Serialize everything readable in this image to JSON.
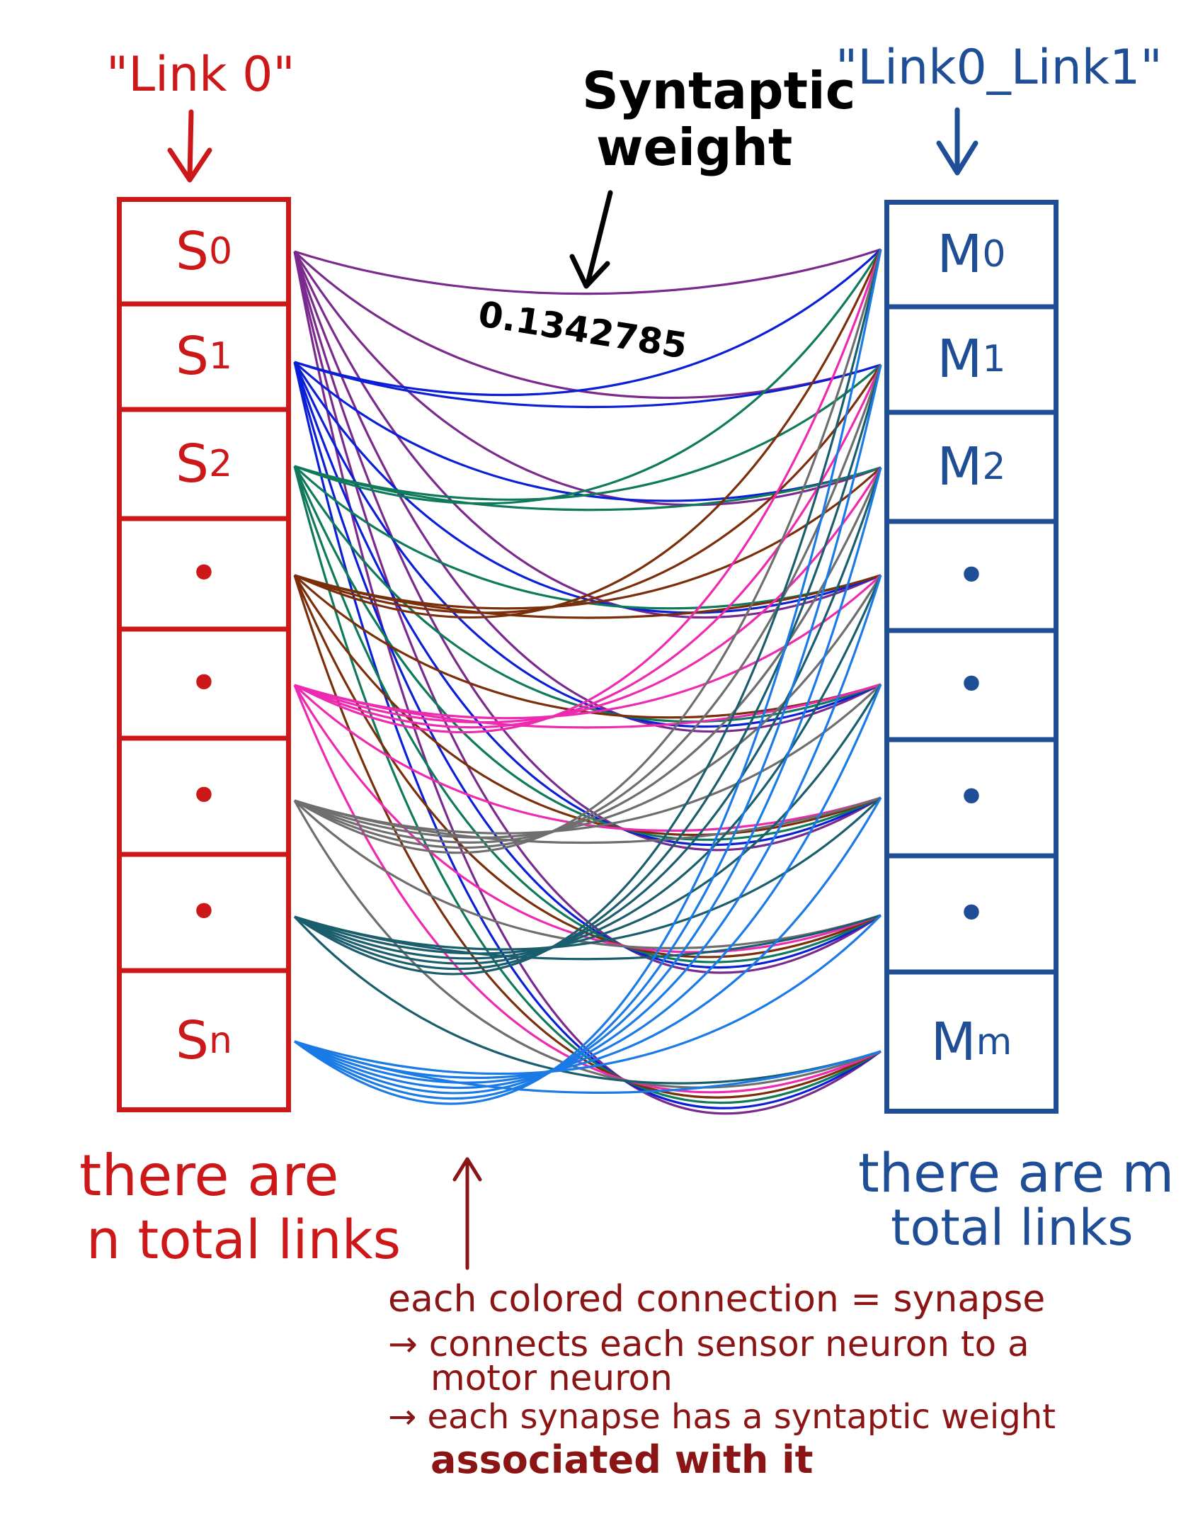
{
  "left_label": "\"Link 0\"",
  "right_label": "\"Link0_Link1\"",
  "weight_label_line1": "Syntaptic",
  "weight_label_line2": "weight",
  "weight_value": "0.1342785",
  "left_column": {
    "color": "#cc1818",
    "cells": [
      {
        "base": "S",
        "sub": "0"
      },
      {
        "base": "S",
        "sub": "1"
      },
      {
        "base": "S",
        "sub": "2"
      },
      {
        "base": "•",
        "sub": ""
      },
      {
        "base": "•",
        "sub": ""
      },
      {
        "base": "•",
        "sub": ""
      },
      {
        "base": "•",
        "sub": ""
      },
      {
        "base": "S",
        "sub": "n"
      }
    ]
  },
  "right_column": {
    "color": "#1f4e96",
    "cells": [
      {
        "base": "M",
        "sub": "0"
      },
      {
        "base": "M",
        "sub": "1"
      },
      {
        "base": "M",
        "sub": "2"
      },
      {
        "base": "•",
        "sub": ""
      },
      {
        "base": "•",
        "sub": ""
      },
      {
        "base": "•",
        "sub": ""
      },
      {
        "base": "•",
        "sub": ""
      },
      {
        "base": "M",
        "sub": "m"
      }
    ]
  },
  "left_caption_line1": "there are",
  "left_caption_line2": "n total links",
  "right_caption_line1": "there are m",
  "right_caption_line2": "total links",
  "note_line1": "each colored connection = synapse",
  "note_line2": "→ connects each sensor neuron to a",
  "note_line3": "motor neuron",
  "note_line4": "→ each synapse has a syntaptic weight",
  "note_line5": "associated with it",
  "synapse_colors": [
    "#7a2a8c",
    "#0a1fd6",
    "#0f7a5a",
    "#7a2e0a",
    "#ee2ab0",
    "#6e6e6e",
    "#1a5e6e",
    "#1a7ae6"
  ]
}
